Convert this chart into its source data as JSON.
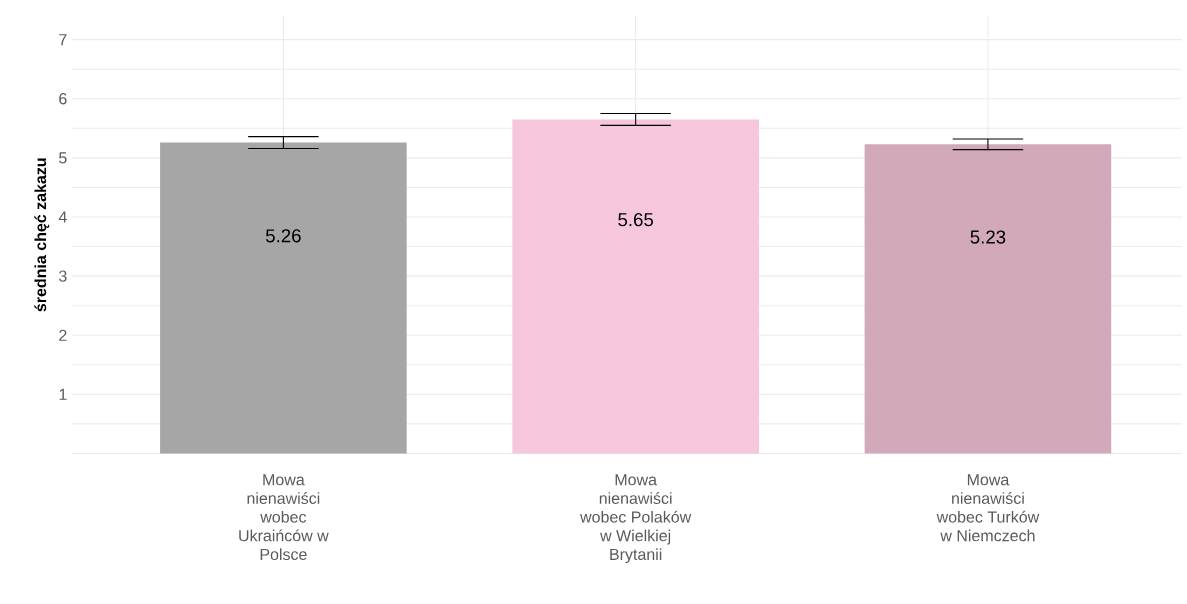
{
  "chart_data": {
    "type": "bar",
    "ylabel": "średnia chęć zakazu",
    "categories": [
      "Mowa nienawiści wobec Ukraińców w Polsce",
      "Mowa nienawiści wobec Polaków w Wielkiej Brytanii",
      "Mowa nienawiści wobec Turków w Niemczech"
    ],
    "values": [
      5.26,
      5.65,
      5.23
    ],
    "colors": [
      "#a6a6a6",
      "#f5c6dc",
      "#d1a9bb"
    ],
    "errors": [
      0.1,
      0.1,
      0.09
    ],
    "ylim": [
      0,
      7.4
    ],
    "yticks": [
      {
        "value": 0,
        "label": null
      },
      {
        "value": 0.5,
        "label": null
      },
      1,
      {
        "value": 1.5,
        "label": null
      },
      2,
      {
        "value": 2.5,
        "label": null
      },
      3,
      {
        "value": 3.5,
        "label": null
      },
      4,
      {
        "value": 4.5,
        "label": null
      },
      5,
      {
        "value": 5.5,
        "label": null
      },
      6,
      {
        "value": 6.5,
        "label": null
      },
      7
    ],
    "grid": true,
    "data_labels": true
  }
}
